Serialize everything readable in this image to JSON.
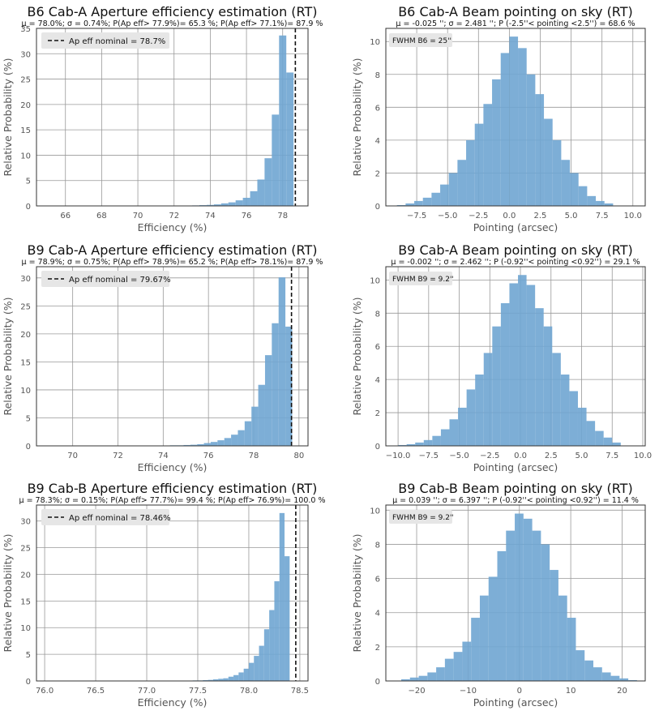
{
  "chart_data": [
    {
      "type": "bar",
      "title": "B6 Cab-A Aperture efficiency estimation (RT)",
      "subtitle": "μ =  78.0%; σ =  0.74%; P(Ap eff> 77.9%)=  65.3 %; P(Ap eff> 77.1%)=  87.9 %",
      "xlabel": "Efficiency (%)",
      "ylabel": "Relative Probability (%)",
      "xlim": [
        64.4,
        79.4
      ],
      "ylim": [
        0,
        35
      ],
      "xticks": [
        "66",
        "68",
        "70",
        "72",
        "74",
        "76",
        "78"
      ],
      "xtick_values": [
        66,
        68,
        70,
        72,
        74,
        76,
        78
      ],
      "yticks": [
        "0",
        "5",
        "10",
        "15",
        "20",
        "25",
        "30",
        "35"
      ],
      "ytick_values": [
        0,
        5,
        10,
        15,
        20,
        25,
        30,
        35
      ],
      "bin_edges": [
        72.6,
        73.0,
        73.4,
        73.8,
        74.2,
        74.6,
        75.0,
        75.4,
        75.8,
        76.2,
        76.6,
        77.0,
        77.4,
        77.8,
        78.2,
        78.6
      ],
      "values": [
        0.05,
        0.1,
        0.15,
        0.2,
        0.3,
        0.5,
        0.7,
        1.1,
        1.6,
        2.9,
        5.2,
        9.4,
        18.0,
        33.6,
        26.3
      ],
      "nominal_line": 78.7,
      "legend": "Ap eff nominal = 78.7%",
      "legend_position": "top-left"
    },
    {
      "type": "bar",
      "title": "B6 Cab-A Beam pointing on sky (RT)",
      "subtitle": "μ =  -0.025 ''; σ =  2.481 ''; P (-2.5''< pointing <2.5'') = 68.6 %",
      "xlabel": "Pointing (arcsec)",
      "ylabel": "Relative Probability (%)",
      "xlim": [
        -10,
        11
      ],
      "ylim": [
        0,
        10.8
      ],
      "xticks": [
        "−7.5",
        "−5.0",
        "−2.5",
        "0.0",
        "2.5",
        "5.0",
        "7.5",
        "10.0"
      ],
      "xtick_values": [
        -7.5,
        -5.0,
        -2.5,
        0.0,
        2.5,
        5.0,
        7.5,
        10.0
      ],
      "yticks": [
        "0",
        "2",
        "4",
        "6",
        "8",
        "10"
      ],
      "ytick_values": [
        0,
        2,
        4,
        6,
        8,
        10
      ],
      "bin_edges": [
        -9.1,
        -8.4,
        -7.7,
        -7.0,
        -6.3,
        -5.6,
        -4.9,
        -4.2,
        -3.5,
        -2.8,
        -2.1,
        -1.4,
        -0.7,
        0.0,
        0.7,
        1.4,
        2.1,
        2.8,
        3.5,
        4.2,
        4.9,
        5.6,
        6.3,
        7.0,
        7.7,
        8.4
      ],
      "values": [
        0.05,
        0.15,
        0.3,
        0.5,
        0.8,
        1.3,
        2.0,
        2.8,
        4.0,
        5.0,
        6.2,
        7.7,
        9.3,
        10.3,
        9.6,
        8.0,
        6.8,
        5.3,
        4.0,
        2.8,
        2.0,
        1.2,
        0.6,
        0.3,
        0.15
      ],
      "annotation": "FWHM B6 = 25''"
    },
    {
      "type": "bar",
      "title": "B9 Cab-A Aperture efficiency estimation (RT)",
      "subtitle": "μ =  78.9%; σ =  0.75%; P(Ap eff> 78.9%)=  65.2 %; P(Ap eff> 78.1%)=  87.9 %",
      "xlabel": "Efficiency (%)",
      "ylabel": "Relative Probability (%)",
      "xlim": [
        68.4,
        80.4
      ],
      "ylim": [
        0,
        32
      ],
      "xticks": [
        "70",
        "72",
        "74",
        "76",
        "78",
        "80"
      ],
      "xtick_values": [
        70,
        72,
        74,
        76,
        78,
        80
      ],
      "yticks": [
        "0",
        "5",
        "10",
        "15",
        "20",
        "25",
        "30"
      ],
      "ytick_values": [
        0,
        5,
        10,
        15,
        20,
        25,
        30
      ],
      "bin_edges": [
        74.0,
        74.3,
        74.6,
        74.9,
        75.2,
        75.5,
        75.8,
        76.1,
        76.4,
        76.7,
        77.0,
        77.3,
        77.6,
        77.9,
        78.2,
        78.5,
        78.8,
        79.1,
        79.4,
        79.7
      ],
      "values": [
        0.05,
        0.1,
        0.1,
        0.15,
        0.2,
        0.3,
        0.5,
        0.7,
        1.0,
        1.4,
        2.0,
        2.8,
        4.4,
        7.0,
        10.9,
        16.2,
        21.9,
        30.1,
        21.3
      ],
      "nominal_line": 79.67,
      "legend": "Ap eff nominal = 79.67%",
      "legend_position": "top-left"
    },
    {
      "type": "bar",
      "title": "B9 Cab-A Beam pointing on sky (RT)",
      "subtitle": "μ =  -0.002 ''; σ =  2.462 ''; P (-0.92''< pointing <0.92'') = 29.1 %",
      "xlabel": "Pointing (arcsec)",
      "ylabel": "Relative Probability (%)",
      "xlim": [
        -11,
        10.2
      ],
      "ylim": [
        0,
        10.8
      ],
      "xticks": [
        "−10.0",
        "−7.5",
        "−5.0",
        "−2.5",
        "0.0",
        "2.5",
        "5.0",
        "7.5",
        "10.0"
      ],
      "xtick_values": [
        -10.0,
        -7.5,
        -5.0,
        -2.5,
        0.0,
        2.5,
        5.0,
        7.5,
        10.0
      ],
      "yticks": [
        "0",
        "2",
        "4",
        "6",
        "8",
        "10"
      ],
      "ytick_values": [
        0,
        2,
        4,
        6,
        8,
        10
      ],
      "bin_edges": [
        -10.0,
        -9.3,
        -8.6,
        -7.9,
        -7.2,
        -6.5,
        -5.8,
        -5.1,
        -4.4,
        -3.7,
        -3.0,
        -2.3,
        -1.6,
        -0.9,
        -0.2,
        0.5,
        1.2,
        1.9,
        2.6,
        3.3,
        4.0,
        4.7,
        5.4,
        6.1,
        6.8,
        7.5,
        8.2
      ],
      "values": [
        0.05,
        0.1,
        0.2,
        0.35,
        0.6,
        1.0,
        1.6,
        2.3,
        3.4,
        4.3,
        5.6,
        7.2,
        8.6,
        9.8,
        10.3,
        9.7,
        8.3,
        7.2,
        5.6,
        4.3,
        3.3,
        2.3,
        1.5,
        0.9,
        0.5,
        0.2
      ],
      "annotation": "FWHM B9 = 9.2''"
    },
    {
      "type": "bar",
      "title": "B9 Cab-B Aperture efficiency estimation (RT)",
      "subtitle": "μ =  78.3%; σ =  0.15%; P(Ap eff> 77.7%)=  99.4 %; P(Ap eff> 76.9%)=  100.0 %",
      "xlabel": "Efficiency (%)",
      "ylabel": "Relative Probability (%)",
      "xlim": [
        75.92,
        78.58
      ],
      "ylim": [
        0,
        33
      ],
      "xticks": [
        "76.0",
        "76.5",
        "77.0",
        "77.5",
        "78.0",
        "78.5"
      ],
      "xtick_values": [
        76.0,
        76.5,
        77.0,
        77.5,
        78.0,
        78.5
      ],
      "yticks": [
        "0",
        "5",
        "10",
        "15",
        "20",
        "25",
        "30"
      ],
      "ytick_values": [
        0,
        5,
        10,
        15,
        20,
        25,
        30
      ],
      "bin_edges": [
        77.4,
        77.45,
        77.5,
        77.55,
        77.6,
        77.65,
        77.7,
        77.75,
        77.8,
        77.85,
        77.9,
        77.95,
        78.0,
        78.05,
        78.1,
        78.15,
        78.2,
        78.25,
        78.3,
        78.35,
        78.4,
        78.45
      ],
      "values": [
        0.05,
        0.1,
        0.1,
        0.15,
        0.2,
        0.3,
        0.4,
        0.5,
        0.8,
        1.1,
        1.6,
        2.3,
        3.4,
        4.7,
        6.6,
        9.7,
        13.3,
        18.7,
        31.5,
        23.4,
        0.0
      ],
      "nominal_line": 78.46,
      "legend": "Ap eff nominal = 78.46%",
      "legend_position": "top-left"
    },
    {
      "type": "bar",
      "title": "B9 Cab-B Beam pointing on sky (RT)",
      "subtitle": "μ =  0.039 ''; σ =  6.397 ''; P (-0.92''< pointing <0.92'') = 11.4 %",
      "xlabel": "Pointing (arcsec)",
      "ylabel": "Relative Probability (%)",
      "xlim": [
        -26,
        24.5
      ],
      "ylim": [
        0,
        10.3
      ],
      "xticks": [
        "−20",
        "−10",
        "0",
        "10",
        "20"
      ],
      "xtick_values": [
        -20,
        -10,
        0,
        10,
        20
      ],
      "yticks": [
        "0",
        "2",
        "4",
        "6",
        "8",
        "10"
      ],
      "ytick_values": [
        0,
        2,
        4,
        6,
        8,
        10
      ],
      "bin_edges": [
        -23.0,
        -21.3,
        -19.6,
        -17.9,
        -16.2,
        -14.5,
        -12.8,
        -11.1,
        -9.4,
        -7.7,
        -6.0,
        -4.3,
        -2.6,
        -0.9,
        0.8,
        2.5,
        4.2,
        5.9,
        7.6,
        9.3,
        11.0,
        12.7,
        14.4,
        16.1,
        17.8,
        19.5,
        21.2,
        22.9
      ],
      "values": [
        0.1,
        0.2,
        0.3,
        0.5,
        0.8,
        1.3,
        1.7,
        2.3,
        3.7,
        5.0,
        6.1,
        7.6,
        8.8,
        9.8,
        9.5,
        8.8,
        8.0,
        6.5,
        5.0,
        3.7,
        1.8,
        1.2,
        0.8,
        0.5,
        0.3,
        0.15,
        0.05
      ],
      "annotation": "FWHM B9 = 9.2''"
    }
  ]
}
